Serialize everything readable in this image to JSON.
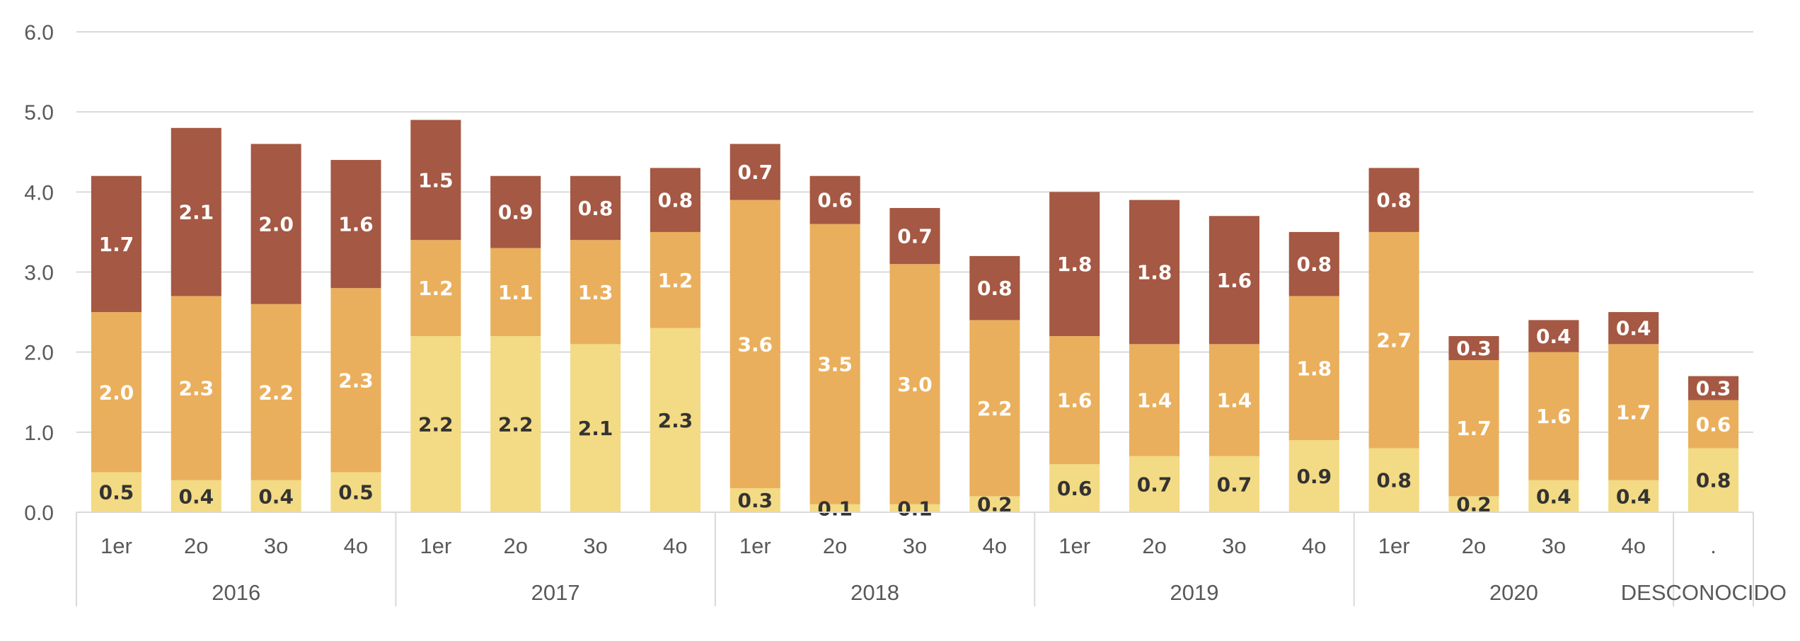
{
  "chart_data": {
    "type": "bar",
    "stacked": true,
    "groups": [
      {
        "label": "2016",
        "categories": [
          "1er",
          "2o",
          "3o",
          "4o"
        ]
      },
      {
        "label": "2017",
        "categories": [
          "1er",
          "2o",
          "3o",
          "4o"
        ]
      },
      {
        "label": "2018",
        "categories": [
          "1er",
          "2o",
          "3o",
          "4o"
        ]
      },
      {
        "label": "2019",
        "categories": [
          "1er",
          "2o",
          "3o",
          "4o"
        ]
      },
      {
        "label": "2020",
        "categories": [
          "1er",
          "2o",
          "3o",
          "4o"
        ]
      },
      {
        "label": "DESCONOCIDO",
        "categories": [
          "."
        ]
      }
    ],
    "series": [
      {
        "color": "#F3DA84",
        "label_color": "#333333",
        "values": [
          0.5,
          0.4,
          0.4,
          0.5,
          2.2,
          2.2,
          2.1,
          2.3,
          0.3,
          0.1,
          0.1,
          0.2,
          0.6,
          0.7,
          0.7,
          0.9,
          0.8,
          0.2,
          0.4,
          0.4,
          0.8
        ]
      },
      {
        "color": "#EAAF5C",
        "label_color": "#ffffff",
        "values": [
          2.0,
          2.3,
          2.2,
          2.3,
          1.2,
          1.1,
          1.3,
          1.2,
          3.6,
          3.5,
          3.0,
          2.2,
          1.6,
          1.4,
          1.4,
          1.8,
          2.7,
          1.7,
          1.6,
          1.7,
          0.6
        ]
      },
      {
        "color": "#A55843",
        "label_color": "#ffffff",
        "values": [
          1.7,
          2.1,
          2.0,
          1.6,
          1.5,
          0.9,
          0.8,
          0.8,
          0.7,
          0.6,
          0.7,
          0.8,
          1.8,
          1.8,
          1.6,
          0.8,
          0.8,
          0.3,
          0.4,
          0.4,
          0.3
        ]
      }
    ],
    "ylim": [
      0,
      6
    ],
    "yticks": [
      "0.0",
      "1.0",
      "2.0",
      "3.0",
      "4.0",
      "5.0",
      "6.0"
    ],
    "grid": true,
    "legend": "none"
  }
}
